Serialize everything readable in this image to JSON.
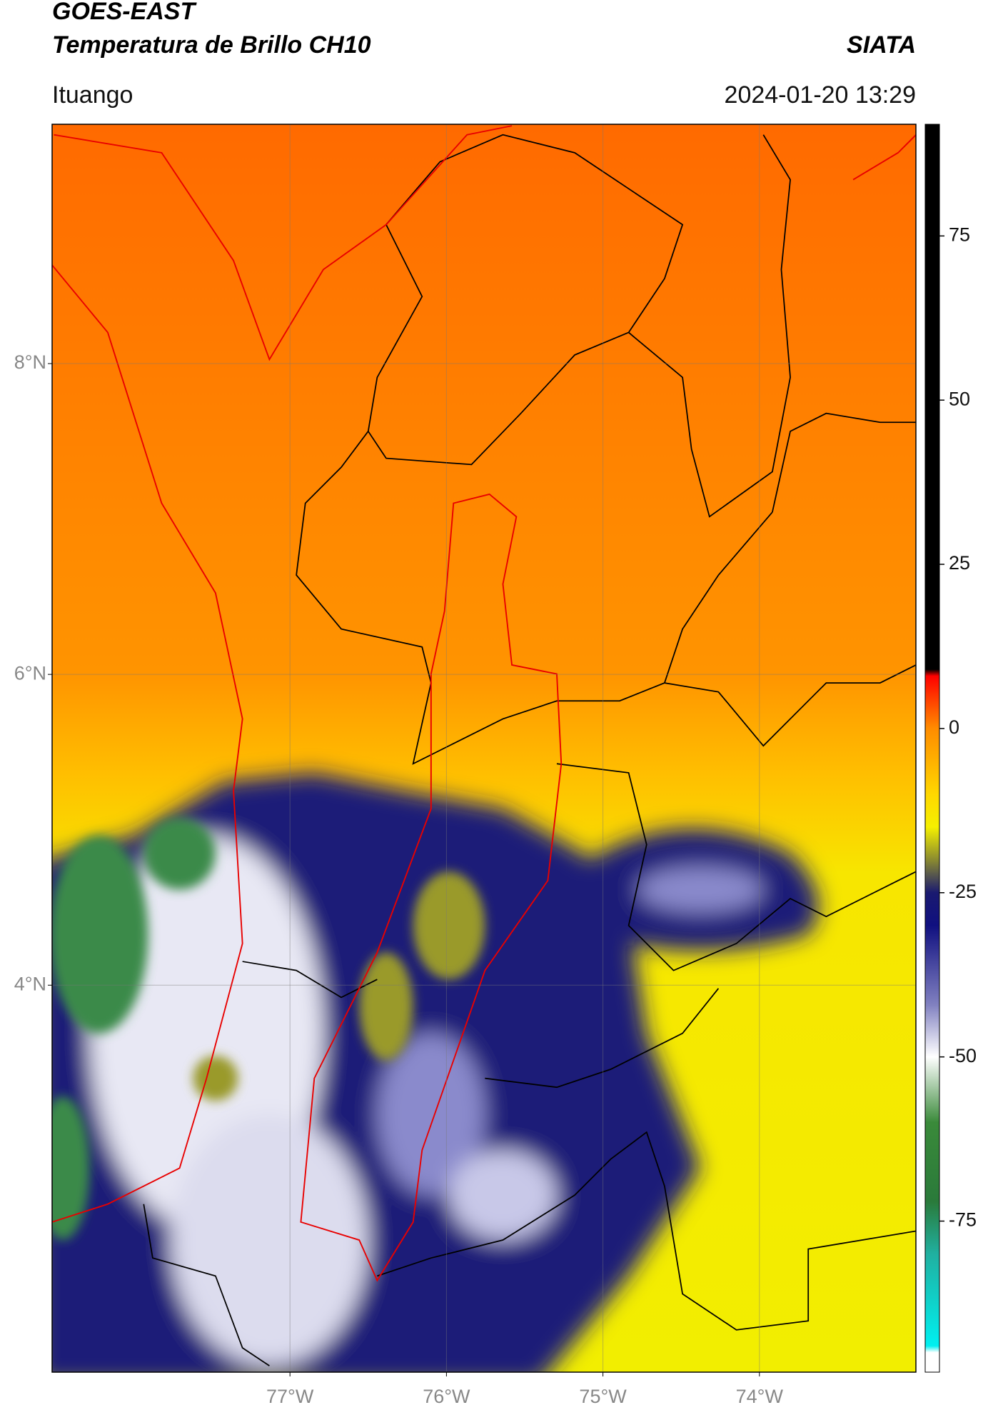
{
  "chart_data": {
    "type": "map",
    "title": "GOES-EAST",
    "subtitle": "Temperatura de Brillo CH10",
    "source": "SIATA",
    "location": "Ituango",
    "datetime": "2024-01-20 13:29",
    "xlim": [
      -78.52,
      -73.0
    ],
    "ylim": [
      1.51,
      9.54
    ],
    "xticks": [
      {
        "value": -77,
        "label": "77°W"
      },
      {
        "value": -76,
        "label": "76°W"
      },
      {
        "value": -75,
        "label": "75°W"
      },
      {
        "value": -74,
        "label": "74°W"
      }
    ],
    "yticks": [
      {
        "value": 8,
        "label": "8°N"
      },
      {
        "value": 6,
        "label": "6°N"
      },
      {
        "value": 4,
        "label": "4°N"
      }
    ],
    "grid": true,
    "colorbar": {
      "lim": [
        -98,
        92
      ],
      "ticks": [
        75,
        50,
        25,
        0,
        -25,
        -50,
        -75
      ],
      "colormap": [
        {
          "value": 92,
          "color": "#000000"
        },
        {
          "value": 9,
          "color": "#000000"
        },
        {
          "value": 8,
          "color": "#ff0000"
        },
        {
          "value": 0,
          "color": "#ff8c00"
        },
        {
          "value": -10,
          "color": "#ffd700"
        },
        {
          "value": -15,
          "color": "#f5f000"
        },
        {
          "value": -20,
          "color": "#8a8a30"
        },
        {
          "value": -25,
          "color": "#1a1a70"
        },
        {
          "value": -30,
          "color": "#101080"
        },
        {
          "value": -42,
          "color": "#8080c0"
        },
        {
          "value": -50,
          "color": "#ffffff"
        },
        {
          "value": -60,
          "color": "#3a8a3a"
        },
        {
          "value": -72,
          "color": "#2a7a3a"
        },
        {
          "value": -80,
          "color": "#20b0a0"
        },
        {
          "value": -94,
          "color": "#00f0f0"
        },
        {
          "value": -95,
          "color": "#ffffff"
        },
        {
          "value": -98,
          "color": "#ffffff"
        }
      ]
    }
  }
}
